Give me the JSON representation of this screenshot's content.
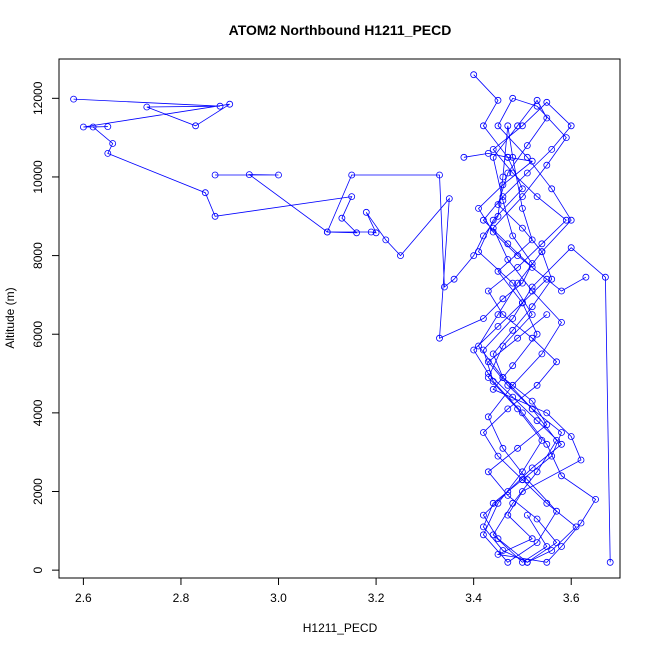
{
  "chart_data": {
    "type": "line",
    "title": "ATOM2 Northbound H1211_PECD",
    "xlabel": "H1211_PECD",
    "ylabel": "Altitude (m)",
    "xlim": [
      2.55,
      3.7
    ],
    "ylim": [
      -200,
      13000
    ],
    "xticks": [
      2.6,
      2.8,
      3.0,
      3.2,
      3.4,
      3.6
    ],
    "xtick_labels": [
      "2.6",
      "2.8",
      "3.0",
      "3.2",
      "3.4",
      "3.6"
    ],
    "yticks": [
      0,
      2000,
      4000,
      6000,
      8000,
      10000,
      12000
    ],
    "ytick_labels": [
      "0",
      "2000",
      "4000",
      "6000",
      "8000",
      "10000",
      "12000"
    ],
    "grid": false,
    "colors": {
      "series": "#0000ff",
      "axis": "#000000",
      "background": "#ffffff"
    },
    "series": [
      {
        "marker": "open-circle",
        "x": [
          2.58,
          2.88,
          2.73,
          2.83,
          2.9,
          2.6,
          2.65,
          2.62,
          2.66,
          2.65,
          2.85,
          2.87,
          3.15,
          3.13,
          3.16,
          3.1,
          3.15,
          3.33,
          3.34,
          3.36,
          3.4,
          3.42,
          3.45,
          3.46,
          3.47,
          3.48,
          3.5,
          3.52,
          3.45,
          3.5,
          3.53,
          3.48,
          3.44,
          3.55,
          3.6,
          3.62,
          3.5,
          3.47,
          3.52,
          3.45,
          3.55,
          3.58,
          3.62,
          3.65,
          3.58,
          3.55,
          3.5,
          3.44,
          3.42,
          3.48,
          3.52,
          3.6,
          3.67,
          3.68
        ],
        "y": [
          11980,
          11800,
          11780,
          11300,
          11850,
          11270,
          11280,
          11270,
          10850,
          10600,
          9600,
          9000,
          9500,
          8950,
          8580,
          8600,
          10050,
          10050,
          7200,
          7400,
          8000,
          8500,
          9000,
          10000,
          11300,
          10500,
          9200,
          8400,
          7600,
          6800,
          6000,
          5200,
          4600,
          4000,
          3400,
          2800,
          2000,
          1400,
          800,
          400,
          200,
          600,
          1200,
          1800,
          2400,
          3200,
          4000,
          4800,
          5600,
          6400,
          7200,
          8200,
          7450,
          200
        ]
      },
      {
        "marker": "open-circle",
        "x": [
          2.87,
          3.0,
          2.94,
          3.1,
          3.19,
          3.2,
          3.18,
          3.22,
          3.25,
          3.35,
          3.33,
          3.42,
          3.46,
          3.5,
          3.52,
          3.48,
          3.46,
          3.44,
          3.49,
          3.53,
          3.55,
          3.51,
          3.47,
          3.45,
          3.5,
          3.54,
          3.56,
          3.52,
          3.48,
          3.44,
          3.46,
          3.52,
          3.55,
          3.49,
          3.43,
          3.47,
          3.53,
          3.57,
          3.51,
          3.46,
          3.42,
          3.44,
          3.5,
          3.56,
          3.58,
          3.52,
          3.47,
          3.43,
          3.49,
          3.55
        ],
        "y": [
          10050,
          10050,
          10060,
          8600,
          8600,
          8580,
          9100,
          8400,
          8000,
          9450,
          5900,
          6400,
          6900,
          7300,
          7800,
          8500,
          9400,
          10500,
          11300,
          11950,
          11500,
          10800,
          10100,
          9300,
          8700,
          8100,
          7400,
          6700,
          6100,
          5500,
          4900,
          4300,
          3700,
          3100,
          2500,
          1900,
          1300,
          700,
          200,
          500,
          1100,
          1700,
          2300,
          2900,
          3500,
          4100,
          4700,
          5300,
          5900,
          6500
        ]
      },
      {
        "marker": "open-circle",
        "x": [
          3.4,
          3.45,
          3.42,
          3.47,
          3.5,
          3.44,
          3.41,
          3.48,
          3.52,
          3.46,
          3.43,
          3.49,
          3.54,
          3.5,
          3.45,
          3.42,
          3.47,
          3.53,
          3.57,
          3.51,
          3.46,
          3.43,
          3.48,
          3.54,
          3.58,
          3.52,
          3.47,
          3.44,
          3.5,
          3.55,
          3.59,
          3.53,
          3.48,
          3.45,
          3.51,
          3.56,
          3.6,
          3.54,
          3.49,
          3.45,
          3.41,
          3.46,
          3.52,
          3.57,
          3.53,
          3.48,
          3.44,
          3.5,
          3.55,
          3.51
        ],
        "y": [
          12600,
          11950,
          11300,
          10500,
          9700,
          8900,
          8100,
          7300,
          6500,
          5700,
          4900,
          4100,
          3300,
          2500,
          1700,
          900,
          200,
          700,
          1500,
          2300,
          3100,
          3900,
          4700,
          5500,
          6300,
          7100,
          7900,
          8700,
          9500,
          10300,
          11000,
          11800,
          12000,
          11300,
          10500,
          9700,
          8900,
          8100,
          7300,
          6500,
          5700,
          4900,
          4100,
          3300,
          2500,
          1700,
          900,
          200,
          600,
          1400
        ]
      },
      {
        "marker": "open-circle",
        "x": [
          3.38,
          3.43,
          3.47,
          3.52,
          3.46,
          3.41,
          3.44,
          3.49,
          3.55,
          3.5,
          3.45,
          3.4,
          3.43,
          3.48,
          3.53,
          3.58,
          3.52,
          3.47,
          3.42,
          3.45,
          3.51,
          3.56,
          3.61,
          3.55,
          3.5,
          3.45,
          3.42,
          3.47,
          3.53,
          3.57,
          3.52,
          3.46,
          3.43,
          3.49,
          3.54,
          3.59,
          3.53,
          3.48,
          3.44,
          3.5,
          3.55,
          3.6,
          3.56,
          3.51,
          3.46,
          3.42,
          3.47,
          3.52,
          3.58,
          3.63
        ],
        "y": [
          10500,
          10600,
          10500,
          10400,
          9800,
          9200,
          8600,
          8000,
          7400,
          6800,
          6200,
          5600,
          5000,
          4400,
          3800,
          3200,
          2600,
          2000,
          1400,
          800,
          200,
          500,
          1100,
          1700,
          2300,
          2900,
          3500,
          4100,
          4700,
          5300,
          5900,
          6500,
          7100,
          7700,
          8300,
          8900,
          9500,
          10100,
          10700,
          11300,
          11900,
          11300,
          10700,
          10100,
          9500,
          8900,
          8300,
          7700,
          7100,
          7450
        ]
      }
    ]
  }
}
